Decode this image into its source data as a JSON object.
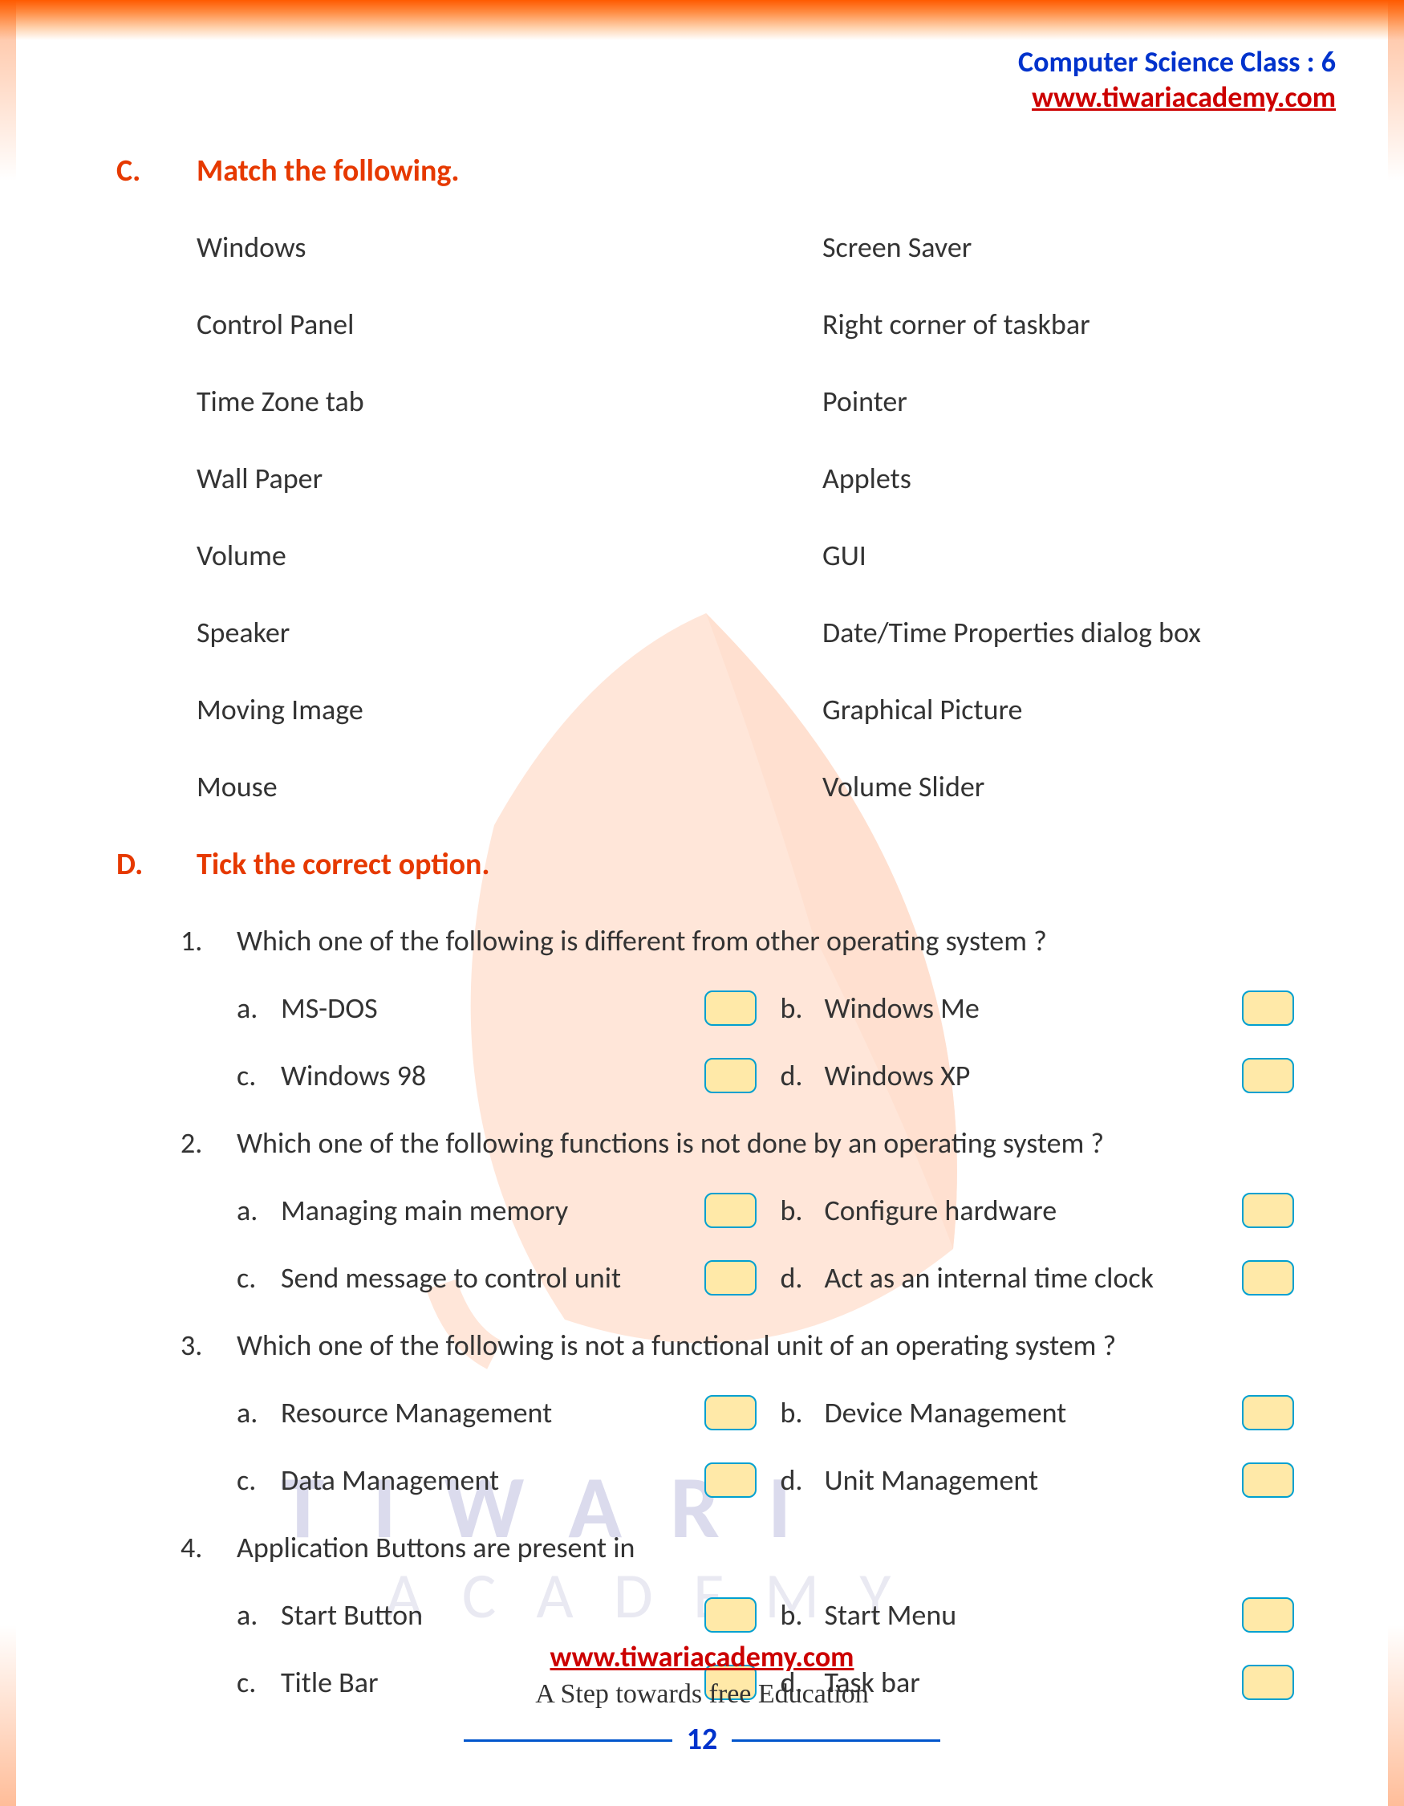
{
  "header": {
    "line1": "Computer Science Class : 6",
    "line2": "www.tiwariacademy.com"
  },
  "sectionC": {
    "label": "C.",
    "title": "Match the following.",
    "rows": [
      {
        "left": "Windows",
        "right": "Screen Saver"
      },
      {
        "left": "Control Panel",
        "right": "Right corner of taskbar"
      },
      {
        "left": "Time Zone tab",
        "right": "Pointer"
      },
      {
        "left": "Wall Paper",
        "right": "Applets"
      },
      {
        "left": "Volume",
        "right": "GUI"
      },
      {
        "left": "Speaker",
        "right": "Date/Time Properties dialog box"
      },
      {
        "left": "Moving Image",
        "right": "Graphical Picture"
      },
      {
        "left": "Mouse",
        "right": "Volume Slider"
      }
    ]
  },
  "sectionD": {
    "label": "D.",
    "title": "Tick the correct option.",
    "questions": [
      {
        "num": "1.",
        "text": "Which one of the following is different from other operating system ?",
        "opts": [
          {
            "l": "a.",
            "t": "MS-DOS"
          },
          {
            "l": "b.",
            "t": "Windows Me"
          },
          {
            "l": "c.",
            "t": "Windows 98"
          },
          {
            "l": "d.",
            "t": "Windows XP"
          }
        ]
      },
      {
        "num": "2.",
        "text": "Which one of the following functions is not done by an operating system ?",
        "opts": [
          {
            "l": "a.",
            "t": "Managing main memory"
          },
          {
            "l": "b.",
            "t": "Configure hardware"
          },
          {
            "l": "c.",
            "t": "Send message to control unit"
          },
          {
            "l": "d.",
            "t": "Act as an internal time clock"
          }
        ]
      },
      {
        "num": "3.",
        "text": "Which one of the following is not a functional unit of an operating system ?",
        "opts": [
          {
            "l": "a.",
            "t": "Resource Management"
          },
          {
            "l": "b.",
            "t": "Device Management"
          },
          {
            "l": "c.",
            "t": "Data Management"
          },
          {
            "l": "d.",
            "t": "Unit Management"
          }
        ]
      },
      {
        "num": "4.",
        "text": "Application Buttons are present in",
        "opts": [
          {
            "l": "a.",
            "t": "Start Button"
          },
          {
            "l": "b.",
            "t": "Start Menu"
          },
          {
            "l": "c.",
            "t": "Title Bar"
          },
          {
            "l": "d.",
            "t": "Task bar"
          }
        ]
      }
    ]
  },
  "footer": {
    "url": "www.tiwariacademy.com",
    "tag": "A Step towards free Education",
    "page": "12"
  },
  "watermark": {
    "text1": "TIWARI",
    "text2": "ACADEMY"
  },
  "colors": {
    "accent_red": "#e63900",
    "link_red": "#cc0000",
    "link_blue": "#0033cc",
    "checkbox_border": "#00a0d0",
    "checkbox_fill": "#ffe9a8"
  }
}
